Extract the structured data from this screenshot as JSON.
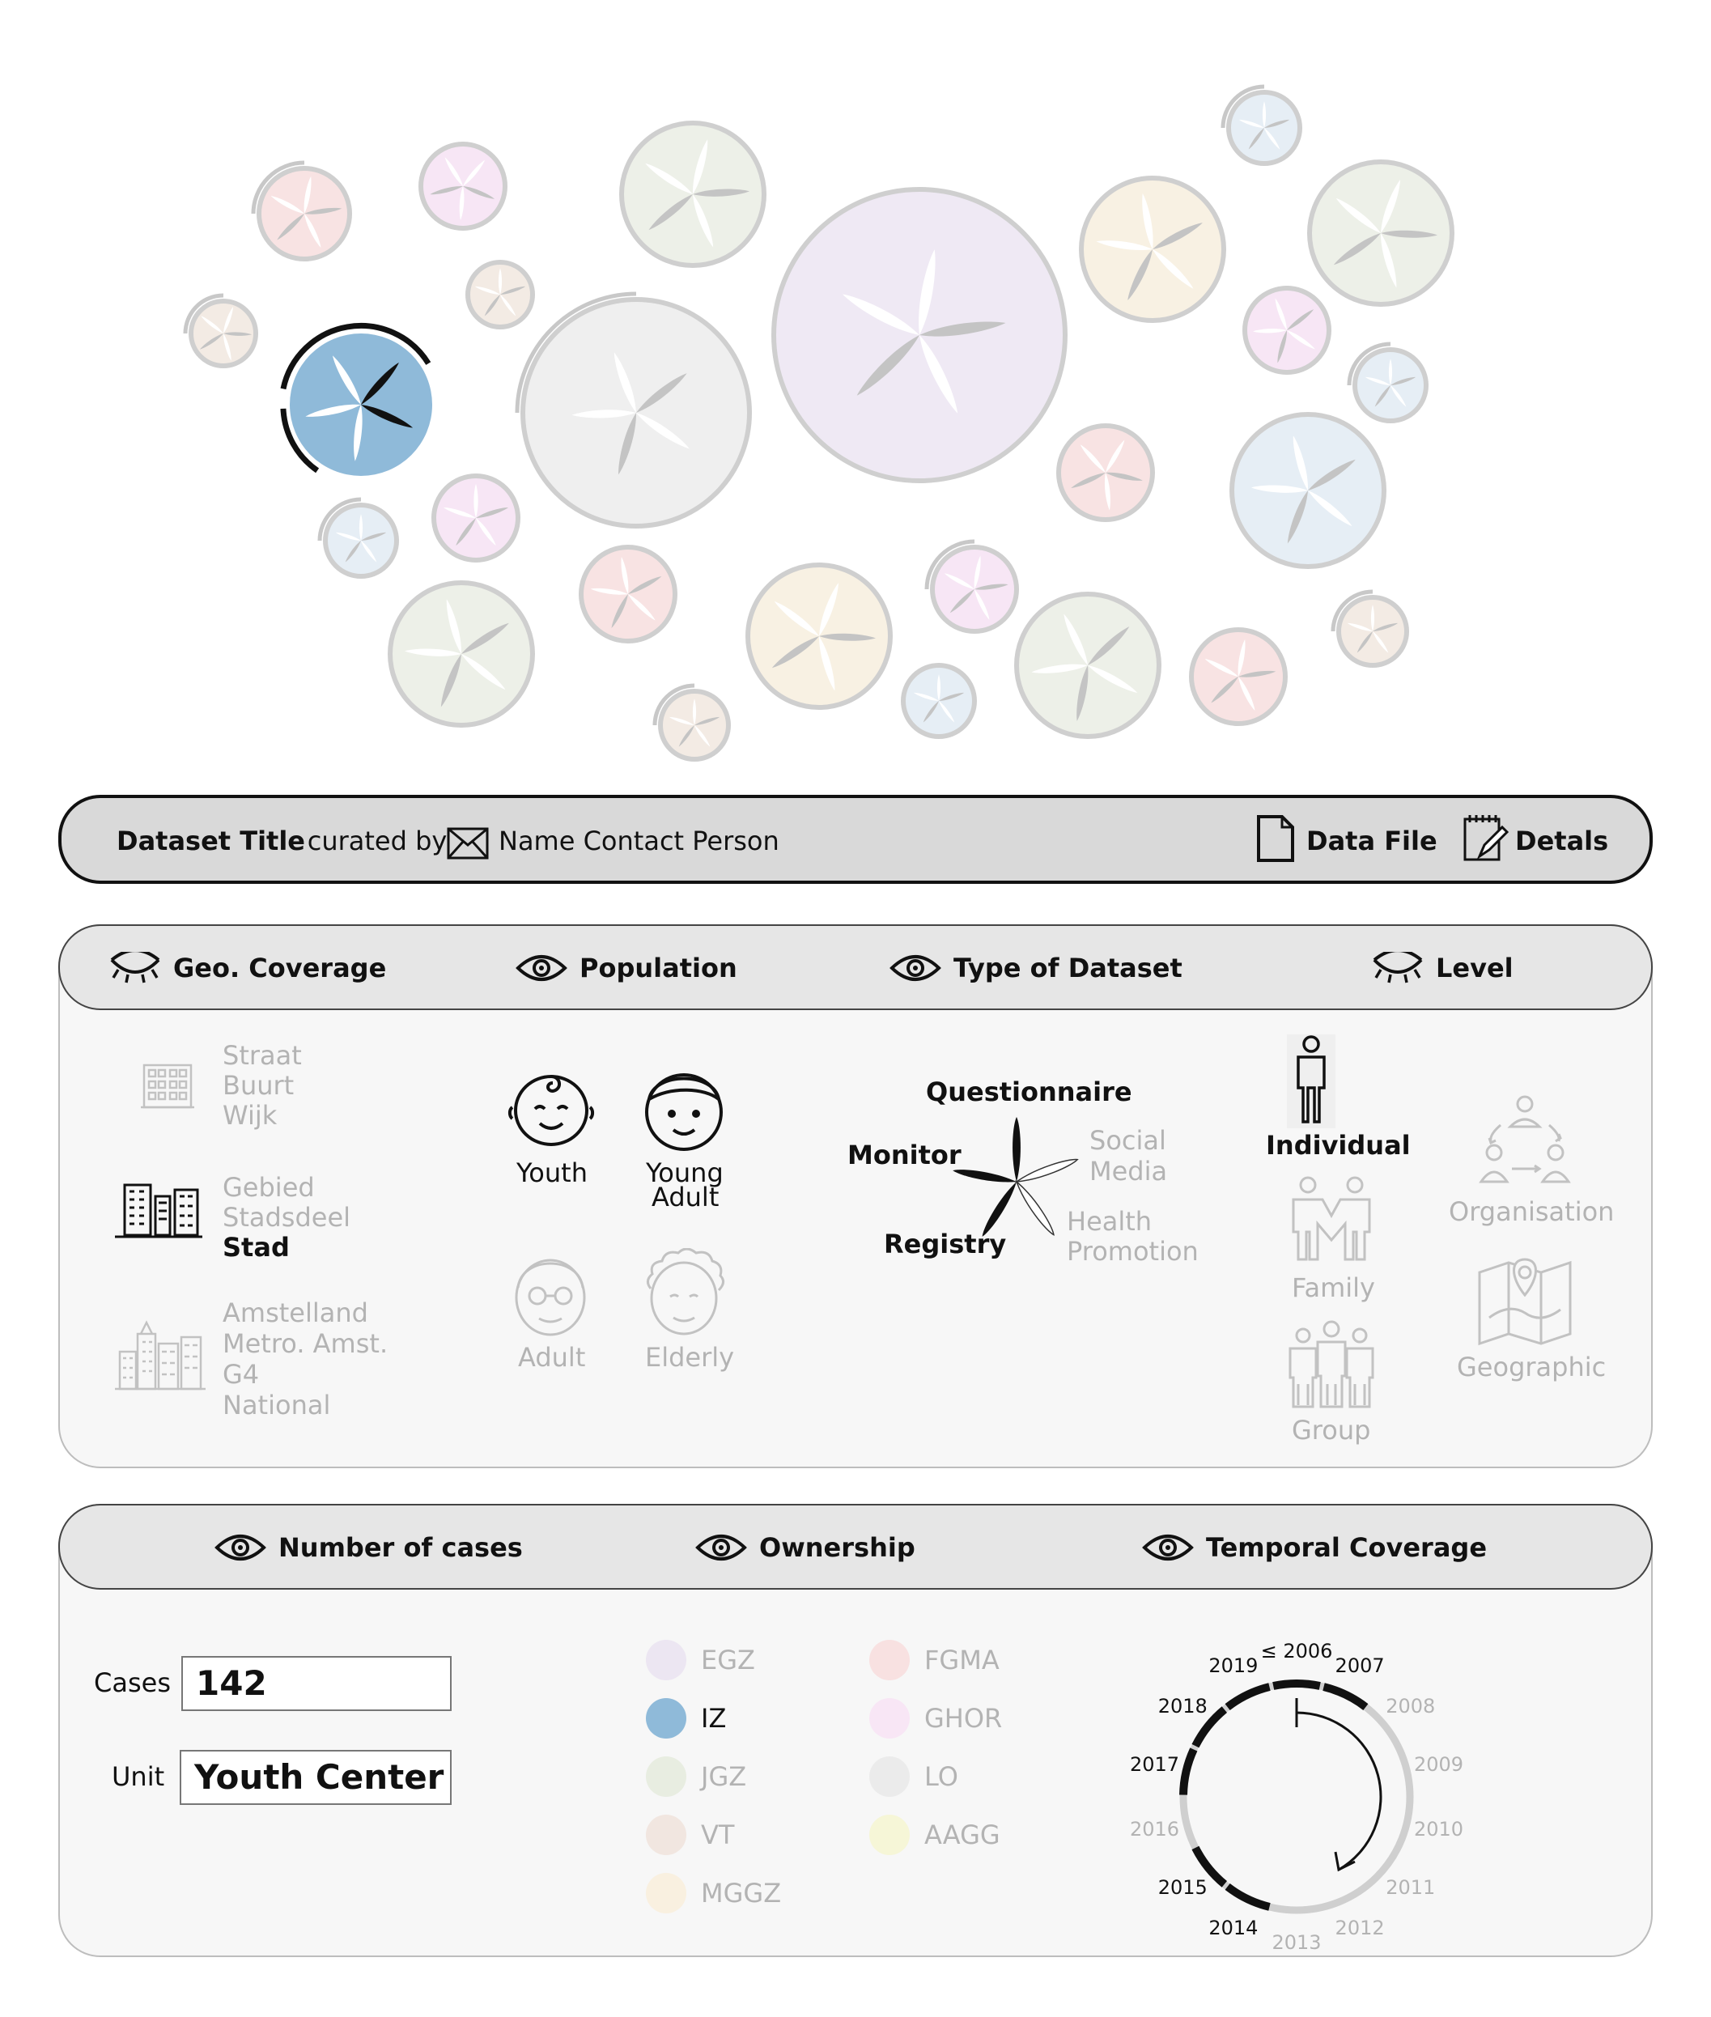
{
  "info_bar": {
    "dataset_title": "Dataset Title",
    "curated_by": "- curated by",
    "contact": "Name Contact Person",
    "data_file": "Data File",
    "details": "Detals"
  },
  "panel1": {
    "headers": {
      "geo": "Geo. Coverage",
      "population": "Population",
      "type": "Type of Dataset",
      "level": "Level"
    },
    "geo": {
      "group1": [
        "Straat",
        "Buurt",
        "Wijk"
      ],
      "group2": [
        "Gebied",
        "Stadsdeel",
        "Stad"
      ],
      "group3": [
        "Amstelland",
        "Metro. Amst.",
        "G4",
        "National"
      ]
    },
    "population": {
      "youth": "Youth",
      "young_adult_1": "Young",
      "young_adult_2": "Adult",
      "adult": "Adult",
      "elderly": "Elderly"
    },
    "type": {
      "questionnaire": "Questionnaire",
      "monitor": "Monitor",
      "registry": "Registry",
      "social_1": "Social",
      "social_2": "Media",
      "health_1": "Health",
      "health_2": "Promotion"
    },
    "level": {
      "individual": "Individual",
      "family": "Family",
      "group": "Group",
      "organisation": "Organisation",
      "geographic": "Geographic"
    }
  },
  "panel2": {
    "headers": {
      "cases": "Number of cases",
      "ownership": "Ownership",
      "temporal": "Temporal Coverage"
    },
    "cases_label": "Cases",
    "cases_value": "142",
    "unit_label": "Unit",
    "unit_value": "Youth Center",
    "ownership": [
      {
        "label": "EGZ",
        "color": "#ece6f2",
        "active": false
      },
      {
        "label": "FGMA",
        "color": "#f8e1e1",
        "active": false
      },
      {
        "label": "IZ",
        "color": "#8fbad9",
        "active": true
      },
      {
        "label": "GHOR",
        "color": "#f8e6f5",
        "active": false
      },
      {
        "label": "JGZ",
        "color": "#e8ede1",
        "active": false
      },
      {
        "label": "LO",
        "color": "#ebebeb",
        "active": false
      },
      {
        "label": "VT",
        "color": "#f1e6e0",
        "active": false
      },
      {
        "label": "AAGG",
        "color": "#f6f6d7",
        "active": false
      },
      {
        "label": "MGGZ",
        "color": "#f9f0e0",
        "active": false
      }
    ],
    "temporal_years": [
      {
        "label": "≤ 2006",
        "active": true
      },
      {
        "label": "2007",
        "active": true
      },
      {
        "label": "2008",
        "active": false
      },
      {
        "label": "2009",
        "active": false
      },
      {
        "label": "2010",
        "active": false
      },
      {
        "label": "2011",
        "active": false
      },
      {
        "label": "2012",
        "active": false
      },
      {
        "label": "2013",
        "active": false
      },
      {
        "label": "2014",
        "active": true
      },
      {
        "label": "2015",
        "active": true
      },
      {
        "label": "2016",
        "active": false
      },
      {
        "label": "2017",
        "active": true
      },
      {
        "label": "2018",
        "active": true
      },
      {
        "label": "2019",
        "active": true
      }
    ]
  },
  "colors": {
    "selected": "#8fbad9",
    "ink": "#111111",
    "faded": "#b3b3b3"
  }
}
